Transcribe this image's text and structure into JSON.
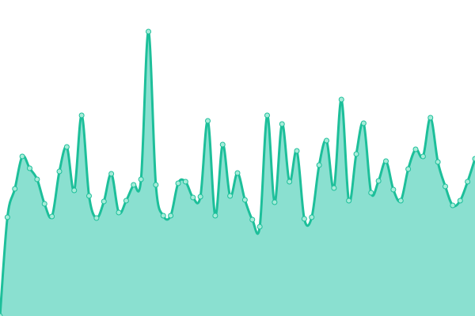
{
  "chart_data": {
    "type": "area",
    "title": "",
    "xlabel": "",
    "ylabel": "",
    "x": [
      0,
      1,
      2,
      3,
      4,
      5,
      6,
      7,
      8,
      9,
      10,
      11,
      12,
      13,
      14,
      15,
      16,
      17,
      18,
      19,
      20,
      21,
      22,
      23,
      24,
      25,
      26,
      27,
      28,
      29,
      30,
      31,
      32,
      33,
      34,
      35,
      36,
      37,
      38,
      39,
      40,
      41,
      42,
      43,
      44,
      45,
      46,
      47,
      48,
      49,
      50,
      51,
      52,
      53,
      54,
      55,
      56,
      57,
      58,
      59,
      60,
      61,
      62,
      63,
      64
    ],
    "series": [
      {
        "values": [
          0,
          125,
          161,
          202,
          187,
          173,
          142,
          126,
          183,
          214,
          159,
          254,
          152,
          124,
          145,
          180,
          131,
          146,
          166,
          173,
          360,
          166,
          127,
          127,
          168,
          170,
          150,
          151,
          247,
          127,
          217,
          152,
          181,
          147,
          122,
          113,
          254,
          144,
          243,
          170,
          209,
          123,
          125,
          191,
          222,
          162,
          274,
          146,
          205,
          244,
          156,
          171,
          196,
          160,
          146,
          186,
          211,
          202,
          251,
          195,
          164,
          140,
          146,
          170,
          199
        ]
      }
    ],
    "ylim": [
      0,
      400
    ],
    "xlim": [
      0,
      64
    ],
    "grid": false,
    "axes_visible": false,
    "curve": "smooth",
    "colors": {
      "line": "#1dbf9a",
      "fill": "#8ae0d0",
      "marker_fill": "#a6ecd9",
      "marker_stroke": "#1dbf9a"
    }
  }
}
